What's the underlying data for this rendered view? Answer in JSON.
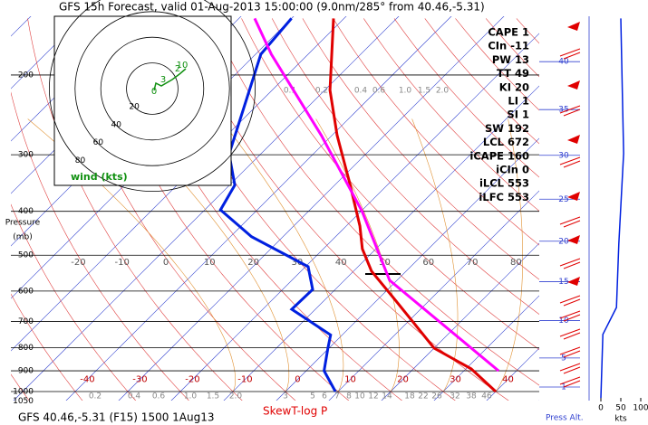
{
  "chart_data": {
    "type": "skewt",
    "title": "GFS 15h Forecast, valid 01-Aug-2013 15:00:00 (9.0nm/285° from 40.46,-5.31)",
    "footer": "GFS 40.46,-5.31 (F15) 1500 1Aug13",
    "xlabel": "SkewT-log P",
    "ylabel": [
      "Pressure",
      "(mb)"
    ],
    "log_y": true,
    "ylim": [
      1050,
      148
    ],
    "yticks": [
      200,
      300,
      400,
      500,
      600,
      700,
      800,
      900,
      1000,
      1050
    ],
    "xticks": [
      -40,
      -30,
      -20,
      -10,
      0,
      10,
      20,
      30,
      40
    ],
    "upper_labels": [
      -20,
      -10,
      0,
      10,
      20,
      30,
      40,
      50,
      60,
      70,
      80
    ],
    "mixing_ratio_labels": [
      "0.1",
      "0.2",
      "0.4",
      "0.6",
      "1.0",
      "1.5",
      "2.0"
    ],
    "mixing_ratio_labels_bottom": [
      "0.2",
      "0.4",
      "0.6",
      "1.0",
      "1.5",
      "2.0",
      "3",
      "5",
      "6",
      "7",
      "8",
      "10",
      "12",
      "14",
      "18",
      "22",
      "26",
      "32",
      "38",
      "46"
    ],
    "indices": [
      "CAPE 1",
      "CIn -11",
      "PW 13",
      "TT 49",
      "KI 20",
      "LI 1",
      "SI 1",
      "SW 192",
      "LCL 672",
      "iCAPE 160",
      "iCIn 0",
      "iLCL 553",
      "iLFC 553"
    ],
    "hodograph": {
      "rings": [
        20,
        40,
        60,
        80
      ],
      "label": "wind (kts)",
      "point_labels": [
        "0",
        "3",
        "2",
        "10"
      ],
      "color": "#109010"
    },
    "series": [
      {
        "color": "#e00000",
        "pressure": [
          1000,
          891,
          802,
          699,
          623,
          542,
          484,
          431,
          343,
          272,
          216,
          150
        ],
        "values": [
          40,
          31,
          20,
          10.7,
          2.9,
          -6.6,
          -12.6,
          -17.4,
          -28,
          -39,
          -49,
          -62
        ]
      },
      {
        "color": "#0020e0",
        "pressure": [
          1000,
          900,
          802,
          750,
          658,
          595,
          530,
          455,
          397,
          350,
          299,
          180,
          150
        ],
        "values": [
          9.5,
          3.4,
          -0.2,
          -2.2,
          -14.5,
          -14.3,
          -19.5,
          -36,
          -47,
          -49,
          -56,
          -69,
          -70
        ]
      },
      {
        "color": "#ff00ff",
        "pressure": [
          900,
          568,
          400,
          272,
          180,
          150
        ],
        "values": [
          36.6,
          -1.4,
          -19.8,
          -42,
          -67,
          -77
        ]
      }
    ],
    "altitude": {
      "label": "Press Alt.",
      "ticks": [
        40,
        35,
        30,
        25,
        20,
        15,
        10,
        5,
        1
      ]
    },
    "wind": {
      "label": "kts",
      "xlim": [
        0,
        100
      ],
      "xticks": [
        0,
        50,
        100
      ],
      "color": "#0020e0",
      "pressure": [
        150,
        298,
        472,
        652,
        748,
        1033
      ],
      "values": [
        50,
        57,
        45,
        39,
        5,
        0
      ]
    }
  }
}
